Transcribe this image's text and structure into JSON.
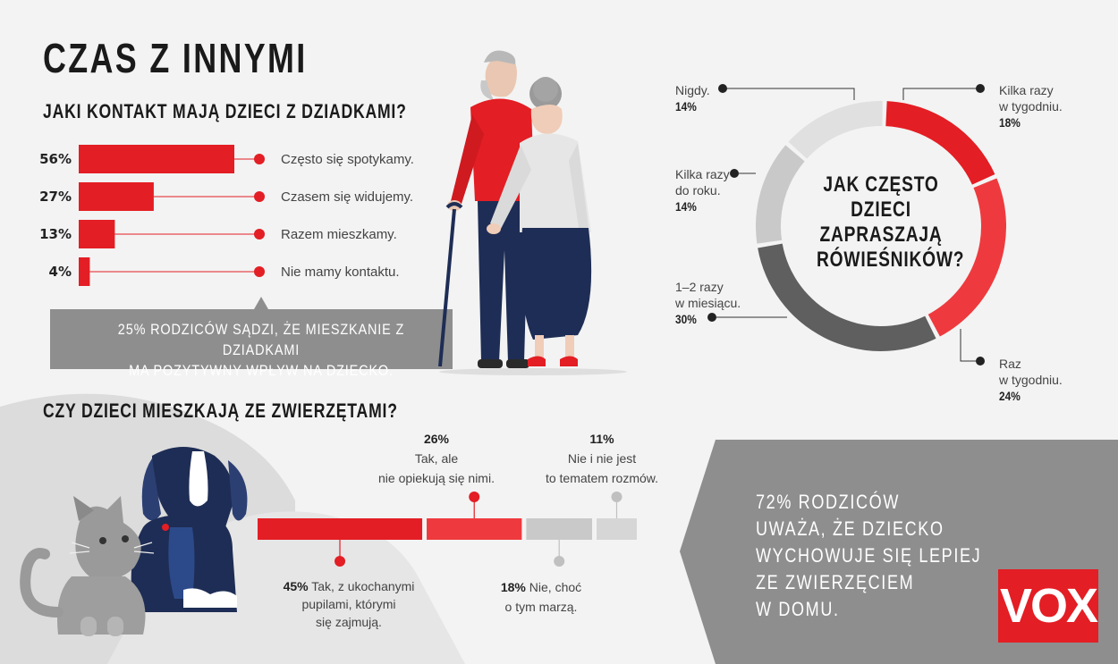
{
  "header": {
    "title": "CZAS Z INNYMI",
    "contact_question": "JAKI KONTAKT MAJĄ DZIECI Z DZIADKAMI?",
    "pets_question": "CZY DZIECI MIESZKAJĄ ZE ZWIERZĘTAMI?"
  },
  "grandparents_callout": [
    "25% RODZICÓW SĄDZI, ŻE MIESZKANIE Z DZIADKAMI",
    "MA POZYTYWNY WPŁYW NA DZIECKO."
  ],
  "pets_callout": [
    "72% RODZICÓW",
    "UWAŻA, ŻE DZIECKO",
    "WYCHOWUJE SIĘ LEPIEJ",
    "ZE ZWIERZĘCIEM",
    "W DOMU."
  ],
  "brand": "VOX",
  "colors": {
    "red": "#e31e24",
    "red_light": "#ee3a3e",
    "dark_gray": "#5f5f5f",
    "mid_gray": "#888888",
    "light_gray": "#c9c9c9",
    "pale_gray": "#e0e0e0",
    "navy": "#1e2d55"
  },
  "chart_data": [
    {
      "type": "bar",
      "orientation": "horizontal",
      "title": "JAKI KONTAKT MAJĄ DZIECI Z DZIADKAMI?",
      "categories": [
        "Często się spotykamy.",
        "Czasem się widujemy.",
        "Razem mieszkamy.",
        "Nie mamy kontaktu."
      ],
      "values": [
        56,
        27,
        13,
        4
      ],
      "labels": [
        "56%",
        "27%",
        "13%",
        "4%"
      ],
      "unit": "%"
    },
    {
      "type": "pie",
      "donut": true,
      "title": "JAK CZĘSTO DZIECI ZAPRASZAJĄ RÓWIEŚNIKÓW?",
      "title_lines": [
        "JAK CZĘSTO",
        "DZIECI",
        "ZAPRASZAJĄ",
        "RÓWIEŚNIKÓW?"
      ],
      "slices": [
        {
          "label_lines": [
            "Kilka razy",
            "w tygodniu."
          ],
          "value": 18,
          "value_label": "18%",
          "color": "#e31e24"
        },
        {
          "label_lines": [
            "Raz",
            "w tygodniu."
          ],
          "value": 24,
          "value_label": "24%",
          "color": "#ee3a3e"
        },
        {
          "label_lines": [
            "1–2 razy",
            "w miesiącu."
          ],
          "value": 30,
          "value_label": "30%",
          "color": "#5f5f5f"
        },
        {
          "label_lines": [
            "Kilka razy",
            "do roku."
          ],
          "value": 14,
          "value_label": "14%",
          "color": "#c9c9c9"
        },
        {
          "label_lines": [
            "Nigdy."
          ],
          "value": 14,
          "value_label": "14%",
          "color": "#e0e0e0"
        }
      ]
    },
    {
      "type": "bar",
      "stacked": true,
      "orientation": "horizontal",
      "title": "CZY DZIECI MIESZKAJĄ ZE ZWIERZĘTAMI?",
      "segments": [
        {
          "label_lines": [
            "Tak, z ukochanymi",
            "pupilami, którymi",
            "się zajmują."
          ],
          "value": 45,
          "value_label": "45%",
          "color": "#e31e24"
        },
        {
          "label_lines": [
            "Tak, ale",
            "nie opiekują się nimi."
          ],
          "value": 26,
          "value_label": "26%",
          "color": "#ee3a3e"
        },
        {
          "label_lines": [
            "Nie, choć",
            "o tym marzą."
          ],
          "value": 18,
          "value_label": "18%",
          "color": "#c9c9c9"
        },
        {
          "label_lines": [
            "Nie i nie jest",
            "to tematem rozmów."
          ],
          "value": 11,
          "value_label": "11%",
          "color": "#d6d6d6"
        }
      ]
    }
  ]
}
